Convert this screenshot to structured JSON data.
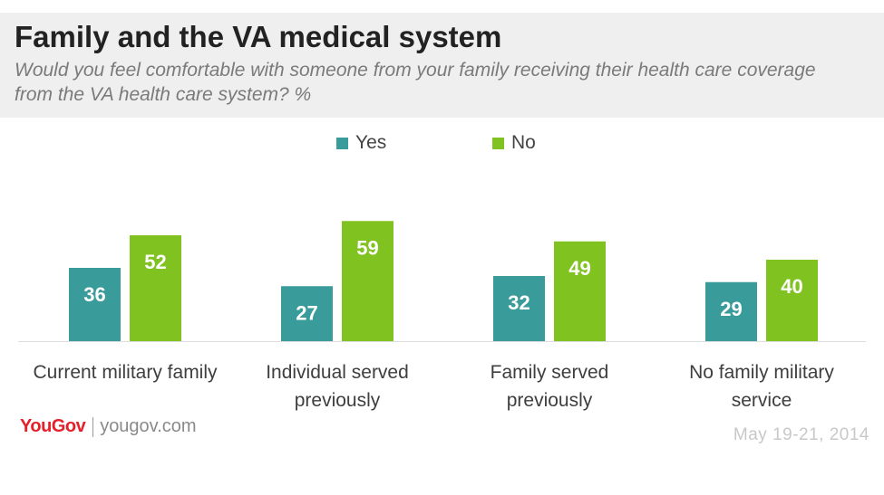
{
  "header": {
    "title": "Family and the VA medical system",
    "subtitle": "Would you feel comfortable with someone from your family receiving their health care coverage from the VA health care system? %"
  },
  "colors": {
    "yes": "#3a9b9b",
    "no": "#80c21f",
    "label": "#ffffff",
    "category_text": "#3e3e3e"
  },
  "chart_data": {
    "type": "bar",
    "categories": [
      "Current military family",
      "Individual served previously",
      "Family served previously",
      "No family military service"
    ],
    "series": [
      {
        "name": "Yes",
        "values": [
          36,
          27,
          32,
          29
        ]
      },
      {
        "name": "No",
        "values": [
          52,
          59,
          49,
          40
        ]
      }
    ],
    "ylim": [
      0,
      70
    ],
    "legend_position": "top",
    "grid": false
  },
  "footer": {
    "brand": "YouGov",
    "url": "yougov.com",
    "date": "May 19-21, 2014"
  }
}
